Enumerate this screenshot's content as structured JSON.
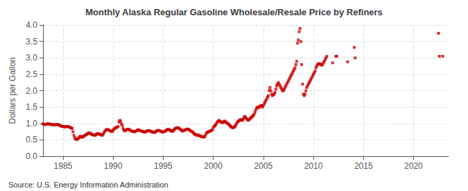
{
  "chart_data": {
    "type": "scatter",
    "title": "Monthly Alaska Regular Gasoline Wholesale/Resale Price by Refiners",
    "ylabel": "Dollars per Gallon",
    "annotations": [
      "Source: U.S. Energy Information Administration"
    ],
    "color": "#cc0000",
    "marker": "square",
    "grid": true,
    "xlim": [
      1983.0,
      2023.5
    ],
    "xticks": [
      1985,
      1990,
      1995,
      2000,
      2005,
      2010,
      2015,
      2020
    ],
    "ylim": [
      0.0,
      4.0
    ],
    "yticks": [
      {
        "value": 0.0,
        "label": "0.0"
      },
      0.5,
      {
        "value": 1.0,
        "label": "1.0"
      },
      1.5,
      {
        "value": 2.0,
        "label": "2.0"
      },
      2.5,
      {
        "value": 3.0,
        "label": "3.0"
      },
      3.5,
      {
        "value": 4.0,
        "label": "4.0"
      }
    ],
    "x": [
      1983.0,
      1983.083,
      1983.167,
      1983.25,
      1983.333,
      1983.417,
      1983.5,
      1983.583,
      1983.667,
      1983.75,
      1983.833,
      1983.917,
      1984.0,
      1984.083,
      1984.167,
      1984.25,
      1984.333,
      1984.417,
      1984.5,
      1984.583,
      1984.667,
      1984.75,
      1984.833,
      1984.917,
      1985.0,
      1985.083,
      1985.167,
      1985.25,
      1985.333,
      1985.417,
      1985.5,
      1985.583,
      1985.667,
      1985.75,
      1985.833,
      1985.917,
      1986.0,
      1986.083,
      1986.167,
      1986.25,
      1986.333,
      1986.417,
      1986.5,
      1986.583,
      1986.667,
      1986.75,
      1986.833,
      1986.917,
      1987.0,
      1987.083,
      1987.167,
      1987.25,
      1987.333,
      1987.417,
      1987.5,
      1987.583,
      1987.667,
      1987.75,
      1987.833,
      1987.917,
      1988.0,
      1988.083,
      1988.167,
      1988.25,
      1988.333,
      1988.417,
      1988.5,
      1988.583,
      1988.667,
      1988.75,
      1988.833,
      1988.917,
      1989.0,
      1989.083,
      1989.167,
      1989.25,
      1989.333,
      1989.417,
      1989.5,
      1989.583,
      1989.667,
      1989.75,
      1989.833,
      1989.917,
      1990.0,
      1990.083,
      1990.167,
      1990.25,
      1990.333,
      1990.417,
      1990.5,
      1990.583,
      1990.667,
      1990.75,
      1990.833,
      1990.917,
      1991.0,
      1991.083,
      1991.167,
      1991.25,
      1991.333,
      1991.417,
      1991.5,
      1991.583,
      1991.667,
      1991.75,
      1991.833,
      1991.917,
      1992.0,
      1992.083,
      1992.167,
      1992.25,
      1992.333,
      1992.417,
      1992.5,
      1992.583,
      1992.667,
      1992.75,
      1992.833,
      1992.917,
      1993.0,
      1993.083,
      1993.167,
      1993.25,
      1993.333,
      1993.417,
      1993.5,
      1993.583,
      1993.667,
      1993.75,
      1993.833,
      1993.917,
      1994.0,
      1994.083,
      1994.167,
      1994.25,
      1994.333,
      1994.417,
      1994.5,
      1994.583,
      1994.667,
      1994.75,
      1994.833,
      1994.917,
      1995.0,
      1995.083,
      1995.167,
      1995.25,
      1995.333,
      1995.417,
      1995.5,
      1995.583,
      1995.667,
      1995.75,
      1995.833,
      1995.917,
      1996.0,
      1996.083,
      1996.167,
      1996.25,
      1996.333,
      1996.417,
      1996.5,
      1996.583,
      1996.667,
      1996.75,
      1996.833,
      1996.917,
      1997.0,
      1997.083,
      1997.167,
      1997.25,
      1997.333,
      1997.417,
      1997.5,
      1997.583,
      1997.667,
      1997.75,
      1997.833,
      1997.917,
      1998.0,
      1998.083,
      1998.167,
      1998.25,
      1998.333,
      1998.417,
      1998.5,
      1998.583,
      1998.667,
      1998.75,
      1998.833,
      1998.917,
      1999.0,
      1999.083,
      1999.167,
      1999.25,
      1999.333,
      1999.417,
      1999.5,
      1999.583,
      1999.667,
      1999.75,
      1999.833,
      1999.917,
      2000.0,
      2000.083,
      2000.167,
      2000.25,
      2000.333,
      2000.417,
      2000.5,
      2000.583,
      2000.667,
      2000.75,
      2000.833,
      2000.917,
      2001.0,
      2001.083,
      2001.167,
      2001.25,
      2001.333,
      2001.417,
      2001.5,
      2001.583,
      2001.667,
      2001.75,
      2001.833,
      2001.917,
      2002.0,
      2002.083,
      2002.167,
      2002.25,
      2002.333,
      2002.417,
      2002.5,
      2002.583,
      2002.667,
      2002.75,
      2002.833,
      2002.917,
      2003.0,
      2003.083,
      2003.167,
      2003.25,
      2003.333,
      2003.417,
      2003.5,
      2003.583,
      2003.667,
      2003.75,
      2003.833,
      2003.917,
      2004.0,
      2004.083,
      2004.167,
      2004.25,
      2004.333,
      2004.417,
      2004.5,
      2004.583,
      2004.667,
      2004.75,
      2004.833,
      2004.917,
      2005.0,
      2005.083,
      2005.167,
      2005.25,
      2005.333,
      2005.417,
      2005.5,
      2005.583,
      2005.667,
      2005.75,
      2005.833,
      2005.917,
      2006.0,
      2006.083,
      2006.167,
      2006.25,
      2006.333,
      2006.417,
      2006.5,
      2006.583,
      2006.667,
      2006.75,
      2006.833,
      2006.917,
      2007.0,
      2007.083,
      2007.167,
      2007.25,
      2007.333,
      2007.417,
      2007.5,
      2007.583,
      2007.667,
      2007.75,
      2007.833,
      2007.917,
      2008.0,
      2008.083,
      2008.167,
      2008.25,
      2008.333,
      2008.417,
      2008.5,
      2008.583,
      2008.667,
      2008.75,
      2008.833,
      2008.917,
      2009.0,
      2009.083,
      2009.167,
      2009.25,
      2009.333,
      2009.417,
      2009.5,
      2009.583,
      2009.667,
      2009.75,
      2009.833,
      2009.917,
      2010.0,
      2010.083,
      2010.167,
      2010.25,
      2010.333,
      2010.417,
      2010.5,
      2010.583,
      2010.667,
      2010.75,
      2010.833,
      2010.917,
      2011.0,
      2011.083,
      2011.167,
      2011.25,
      2011.333,
      2011.917,
      2012.25,
      2012.333,
      2013.417,
      2014.083,
      2014.167,
      2022.5,
      2022.583,
      2022.917
    ],
    "values": [
      0.99,
      0.975,
      0.97,
      0.97,
      0.975,
      0.985,
      0.99,
      0.985,
      0.98,
      0.975,
      0.97,
      0.965,
      0.965,
      0.96,
      0.958,
      0.962,
      0.968,
      0.972,
      0.968,
      0.958,
      0.942,
      0.93,
      0.92,
      0.912,
      0.908,
      0.9,
      0.892,
      0.898,
      0.905,
      0.91,
      0.905,
      0.895,
      0.885,
      0.875,
      0.86,
      0.848,
      0.75,
      0.64,
      0.57,
      0.53,
      0.51,
      0.515,
      0.54,
      0.56,
      0.59,
      0.61,
      0.595,
      0.58,
      0.595,
      0.615,
      0.635,
      0.648,
      0.66,
      0.678,
      0.7,
      0.712,
      0.705,
      0.69,
      0.675,
      0.66,
      0.655,
      0.645,
      0.638,
      0.65,
      0.668,
      0.682,
      0.692,
      0.685,
      0.672,
      0.66,
      0.65,
      0.64,
      0.668,
      0.712,
      0.76,
      0.792,
      0.808,
      0.818,
      0.81,
      0.798,
      0.782,
      0.77,
      0.76,
      0.752,
      0.795,
      0.828,
      0.848,
      0.865,
      0.878,
      0.892,
      0.905,
      1.045,
      1.095,
      1.065,
      0.985,
      0.935,
      0.845,
      0.795,
      0.772,
      0.79,
      0.808,
      0.82,
      0.825,
      0.815,
      0.802,
      0.788,
      0.772,
      0.76,
      0.755,
      0.748,
      0.752,
      0.762,
      0.775,
      0.792,
      0.808,
      0.8,
      0.788,
      0.778,
      0.768,
      0.758,
      0.752,
      0.742,
      0.735,
      0.748,
      0.762,
      0.778,
      0.788,
      0.78,
      0.772,
      0.76,
      0.75,
      0.742,
      0.735,
      0.725,
      0.732,
      0.748,
      0.765,
      0.782,
      0.792,
      0.785,
      0.775,
      0.762,
      0.75,
      0.738,
      0.742,
      0.75,
      0.762,
      0.778,
      0.795,
      0.812,
      0.822,
      0.812,
      0.798,
      0.782,
      0.768,
      0.755,
      0.778,
      0.808,
      0.832,
      0.852,
      0.865,
      0.875,
      0.865,
      0.848,
      0.83,
      0.812,
      0.792,
      0.772,
      0.775,
      0.785,
      0.795,
      0.812,
      0.822,
      0.832,
      0.825,
      0.808,
      0.79,
      0.772,
      0.758,
      0.748,
      0.715,
      0.692,
      0.672,
      0.658,
      0.642,
      0.638,
      0.648,
      0.638,
      0.622,
      0.61,
      0.6,
      0.59,
      0.592,
      0.582,
      0.612,
      0.668,
      0.712,
      0.732,
      0.748,
      0.75,
      0.762,
      0.778,
      0.792,
      0.808,
      0.875,
      0.908,
      0.932,
      0.962,
      1.008,
      1.052,
      1.075,
      1.092,
      1.068,
      1.048,
      1.038,
      1.022,
      1.042,
      1.062,
      1.072,
      1.042,
      1.018,
      1.005,
      0.988,
      0.965,
      0.935,
      0.908,
      0.888,
      0.872,
      0.875,
      0.882,
      0.915,
      0.948,
      0.998,
      1.042,
      1.068,
      1.085,
      1.105,
      1.118,
      1.108,
      1.092,
      1.142,
      1.195,
      1.215,
      1.175,
      1.142,
      1.115,
      1.098,
      1.112,
      1.142,
      1.172,
      1.195,
      1.215,
      1.248,
      1.282,
      1.348,
      1.415,
      1.472,
      1.498,
      1.478,
      1.498,
      1.518,
      1.545,
      1.548,
      1.498,
      1.548,
      1.595,
      1.648,
      1.698,
      1.745,
      1.798,
      1.848,
      2.005,
      2.095,
      1.995,
      1.895,
      1.848,
      1.878,
      1.898,
      1.948,
      2.048,
      2.148,
      2.198,
      2.248,
      2.195,
      2.148,
      2.098,
      2.048,
      1.998,
      1.998,
      2.048,
      2.098,
      2.148,
      2.198,
      2.248,
      2.298,
      2.348,
      2.398,
      2.448,
      2.498,
      2.548,
      2.598,
      2.648,
      2.698,
      2.795,
      2.895,
      3.445,
      3.545,
      3.798,
      3.895,
      3.495,
      2.795,
      2.198,
      1.895,
      1.848,
      1.895,
      1.995,
      2.095,
      2.148,
      2.198,
      2.248,
      2.295,
      2.345,
      2.395,
      2.445,
      2.495,
      2.545,
      2.595,
      2.695,
      2.745,
      2.795,
      2.815,
      2.825,
      2.815,
      2.795,
      2.775,
      2.795,
      2.845,
      2.895,
      2.945,
      2.995,
      3.045,
      2.848,
      3.048,
      3.048,
      2.878,
      3.318,
      2.998,
      3.748,
      3.048,
      3.048
    ]
  }
}
